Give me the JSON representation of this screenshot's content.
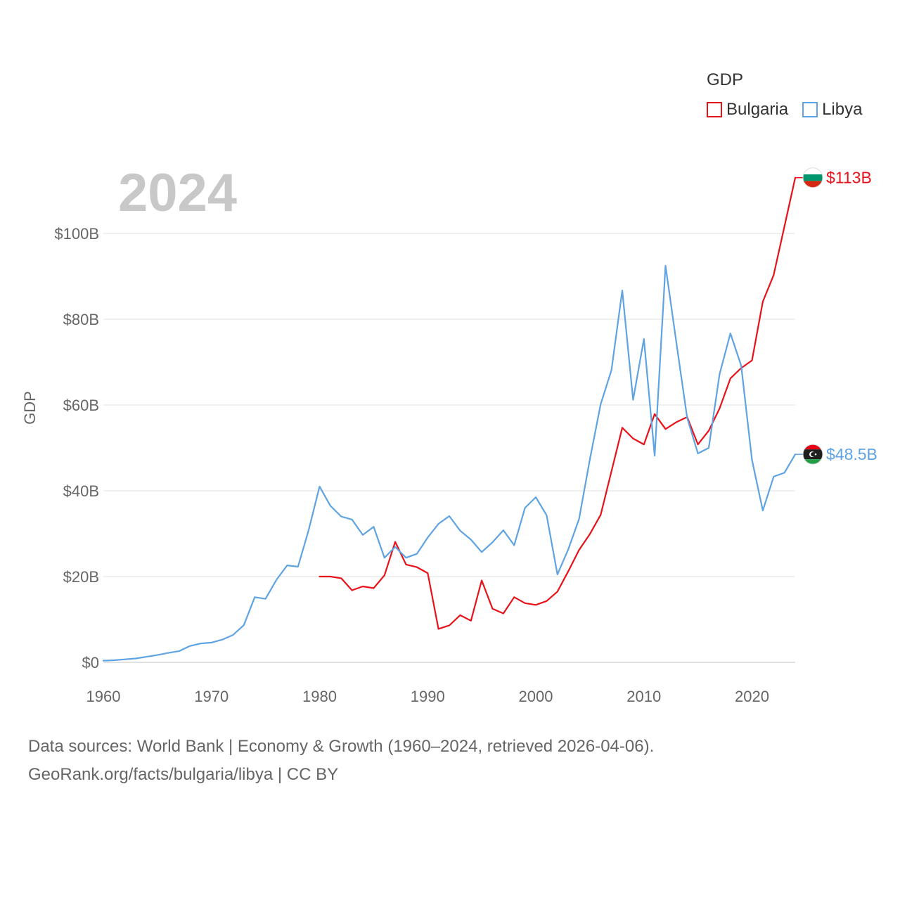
{
  "chart_data": {
    "type": "line",
    "title": "GDP",
    "year_label": "2024",
    "xlabel": "",
    "ylabel": "GDP",
    "xlim": [
      1960,
      2024
    ],
    "ylim": [
      0,
      100
    ],
    "x_ticks": [
      1960,
      1970,
      1980,
      1990,
      2000,
      2010,
      2020
    ],
    "y_ticks": [
      0,
      20,
      40,
      60,
      80,
      100
    ],
    "y_tick_labels": [
      "$0",
      "$20B",
      "$40B",
      "$60B",
      "$80B",
      "$100B"
    ],
    "legend": {
      "title": "GDP",
      "position": "top-right"
    },
    "series": [
      {
        "name": "Bulgaria",
        "color": "#e8131a",
        "flag": "bulgaria-flag",
        "end_label": "$113B",
        "x": [
          1980,
          1981,
          1982,
          1983,
          1984,
          1985,
          1986,
          1987,
          1988,
          1989,
          1990,
          1991,
          1992,
          1993,
          1994,
          1995,
          1996,
          1997,
          1998,
          1999,
          2000,
          2001,
          2002,
          2003,
          2004,
          2005,
          2006,
          2007,
          2008,
          2009,
          2010,
          2011,
          2012,
          2013,
          2014,
          2015,
          2016,
          2017,
          2018,
          2019,
          2020,
          2021,
          2022,
          2023,
          2024
        ],
        "values": [
          20.0,
          20.0,
          19.6,
          16.8,
          17.7,
          17.3,
          20.3,
          28.1,
          22.8,
          22.2,
          20.8,
          7.8,
          8.6,
          11.0,
          9.7,
          19.1,
          12.5,
          11.4,
          15.2,
          13.8,
          13.4,
          14.3,
          16.5,
          21.2,
          26.2,
          29.9,
          34.4,
          44.5,
          54.7,
          52.2,
          50.8,
          57.9,
          54.4,
          56.0,
          57.2,
          50.8,
          54.0,
          59.2,
          66.2,
          68.6,
          70.4,
          84.1,
          90.3,
          101.6,
          113.0
        ]
      },
      {
        "name": "Libya",
        "color": "#5fa3e3",
        "flag": "libya-flag",
        "end_label": "$48.5B",
        "x": [
          1960,
          1961,
          1962,
          1963,
          1964,
          1965,
          1966,
          1967,
          1968,
          1969,
          1970,
          1971,
          1972,
          1973,
          1974,
          1975,
          1976,
          1977,
          1978,
          1979,
          1980,
          1981,
          1982,
          1983,
          1984,
          1985,
          1986,
          1987,
          1988,
          1989,
          1990,
          1991,
          1992,
          1993,
          1994,
          1995,
          1996,
          1997,
          1998,
          1999,
          2000,
          2001,
          2002,
          2003,
          2004,
          2005,
          2006,
          2007,
          2008,
          2009,
          2010,
          2011,
          2012,
          2013,
          2014,
          2015,
          2016,
          2017,
          2018,
          2019,
          2020,
          2021,
          2022,
          2023,
          2024
        ],
        "values": [
          0.4,
          0.5,
          0.7,
          0.9,
          1.3,
          1.7,
          2.2,
          2.6,
          3.8,
          4.4,
          4.6,
          5.3,
          6.4,
          8.7,
          15.2,
          14.8,
          19.2,
          22.6,
          22.3,
          30.9,
          41.0,
          36.5,
          34.0,
          33.3,
          29.7,
          31.6,
          24.4,
          26.9,
          24.4,
          25.3,
          29.1,
          32.3,
          34.1,
          30.7,
          28.6,
          25.7,
          28.0,
          30.8,
          27.3,
          36.0,
          38.5,
          34.3,
          20.5,
          26.3,
          33.4,
          47.3,
          60.2,
          68.1,
          86.7,
          61.2,
          75.4,
          48.2,
          92.5,
          74.6,
          57.0,
          48.7,
          50.0,
          67.2,
          76.7,
          69.2,
          47.2,
          35.4,
          43.3,
          44.2,
          48.5
        ]
      }
    ]
  },
  "footer": {
    "sources": "Data sources: World Bank | Economy & Growth (1960–2024, retrieved 2026-04-06).",
    "attribution": "GeoRank.org/facts/bulgaria/libya | CC BY"
  }
}
